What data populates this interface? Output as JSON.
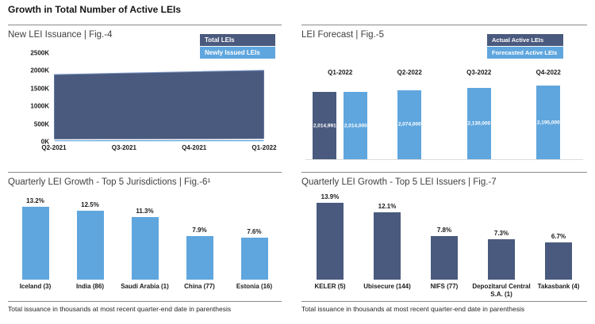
{
  "page_title": "Growth in Total Number of Active LEIs",
  "colors": {
    "dark_blue": "#4A5A7E",
    "light_blue": "#5FA6DE",
    "panel_title_text": "#404040",
    "rule_gray": "#8A8A8A",
    "baseline_gray": "#DCDCDC",
    "label_text": "#1A1A1A"
  },
  "chart_data": [
    {
      "id": "fig4",
      "type": "area",
      "title": "New LEI Issuance | Fig.-4",
      "categories": [
        "Q2-2021",
        "Q3-2021",
        "Q4-2021",
        "Q1-2022"
      ],
      "series": [
        {
          "name": "Total LEIs",
          "color": "#4A5A7E",
          "values": [
            1895000,
            1935000,
            1975000,
            2015000
          ]
        },
        {
          "name": "Newly Issued LEIs",
          "color": "#5FA6DE",
          "values": [
            58000,
            60000,
            63000,
            66000
          ]
        }
      ],
      "ylim": [
        0,
        2500000
      ],
      "ytick_labels": [
        "2500K",
        "2000K",
        "1500K",
        "1000K",
        "500K",
        "0K"
      ],
      "legend_position": "top-right",
      "grid": false
    },
    {
      "id": "fig5",
      "type": "bar",
      "title": "LEI Forecast | Fig.-5",
      "categories": [
        "Q1-2022",
        "Q2-2022",
        "Q3-2022",
        "Q4-2022"
      ],
      "series": [
        {
          "name": "Actual Active LEIs",
          "color": "#4A5A7E",
          "values": [
            2014991,
            null,
            null,
            null
          ],
          "labels": [
            "2,014,991",
            null,
            null,
            null
          ]
        },
        {
          "name": "Forecasted Active LEIs",
          "color": "#5FA6DE",
          "values": [
            2014000,
            2074000,
            2130000,
            2195000
          ],
          "labels": [
            "2,014,000",
            "2,074,000",
            "2,130,000",
            "2,195,000"
          ]
        }
      ],
      "ylim": [
        0,
        2300000
      ],
      "category_labels_position": "above-bars",
      "legend_position": "top-right",
      "grid": false
    },
    {
      "id": "fig6",
      "type": "bar",
      "title": "Quarterly LEI Growth - Top 5 Jurisdictions | Fig.-6¹",
      "categories": [
        "Iceland (3)",
        "India (86)",
        "Saudi Arabia (1)",
        "China (77)",
        "Estonia (16)"
      ],
      "values": [
        13.2,
        12.5,
        11.3,
        7.9,
        7.6
      ],
      "value_labels": [
        "13.2%",
        "12.5%",
        "11.3%",
        "7.9%",
        "7.6%"
      ],
      "bar_color": "#5FA6DE",
      "ylim": [
        0,
        15
      ],
      "grid": false,
      "footnote": "Total issuance in thousands at most recent quarter-end date in parenthesis"
    },
    {
      "id": "fig7",
      "type": "bar",
      "title": "Quarterly LEI Growth - Top 5 LEI Issuers | Fig.-7",
      "categories": [
        "KELER (5)",
        "Ubisecure (144)",
        "NIFS (77)",
        "Depozitarul Central S.A. (1)",
        "Takasbank (4)"
      ],
      "values": [
        13.9,
        12.1,
        7.8,
        7.3,
        6.7
      ],
      "value_labels": [
        "13.9%",
        "12.1%",
        "7.8%",
        "7.3%",
        "6.7%"
      ],
      "bar_color": "#4A5A7E",
      "ylim": [
        0,
        15
      ],
      "grid": false,
      "footnote": "Total issuance in thousands at most recent quarter-end date in parenthesis"
    }
  ]
}
